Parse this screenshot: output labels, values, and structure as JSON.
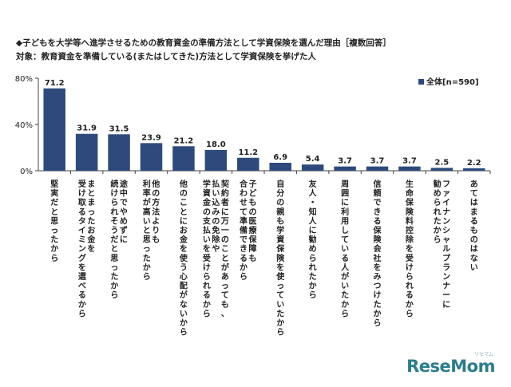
{
  "title_line1": "◆子どもを大学等へ進学させるための教育資金の準備方法として学資保険を選んだ理由［複数回答］",
  "title_line2": "対象：教育資金を準備している(またはしてきた)方法として学資保険を挙げた人",
  "watermark": {
    "text": "ReseMom",
    "small": "リセマム"
  },
  "chart_data": {
    "type": "bar",
    "categories": [
      "堅実だと思ったから",
      "まとまったお金を受け取るタイミングを選べるから",
      "途中でやめずに続けられそうだと思ったから",
      "他の方法よりも利率が高いと思ったから",
      "他のことにお金を使う心配がないから",
      "契約者に万一のことがあっても、払い込みの免除や学資金の支払いを受けられるから",
      "子どもの医療保障も合わせて準備できるから",
      "自分の親も学資保険を使っていたから",
      "友人・知人に勧められたから",
      "周囲に利用している人がいたから",
      "信頼できる保険会社をみつけたから",
      "生命保険料控除を受けられるから",
      "ファイナンシャルプランナーに勧められたから",
      "あてはまるものはない"
    ],
    "label_lines": [
      [
        "堅実だと思ったから"
      ],
      [
        "まとまったお金を",
        "受け取るタイミングを選べるから"
      ],
      [
        "途中でやめずに",
        "続けられそうだと思ったから"
      ],
      [
        "他の方法よりも",
        "利率が高いと思ったから"
      ],
      [
        "他のことにお金を使う心配がないから"
      ],
      [
        "契約者に万一のことがあっても、",
        "払い込みの免除や",
        "学資金の支払いを受けられるから"
      ],
      [
        "子どもの医療保障も",
        "合わせて準備できるから"
      ],
      [
        "自分の親も学資保険を使っていたから"
      ],
      [
        "友人・知人に勧められたから"
      ],
      [
        "周囲に利用している人がいたから"
      ],
      [
        "信頼できる保険会社をみつけたから"
      ],
      [
        "生命保険料控除を受けられるから"
      ],
      [
        "ファイナンシャルプランナーに",
        "勧められたから"
      ],
      [
        "あてはまるものはない"
      ]
    ],
    "series": [
      {
        "name": "全体[n=590]",
        "values": [
          71.2,
          31.9,
          31.5,
          23.9,
          21.2,
          18.0,
          11.2,
          6.9,
          5.4,
          3.7,
          3.7,
          3.7,
          2.5,
          2.2
        ]
      }
    ],
    "value_labels": [
      "71.2",
      "31.9",
      "31.5",
      "23.9",
      "21.2",
      "18.0",
      "11.2",
      "6.9",
      "5.4",
      "3.7",
      "3.7",
      "3.7",
      "2.5",
      "2.2"
    ],
    "yticks": [
      "0%",
      "40%",
      "80%"
    ],
    "ytick_values": [
      0,
      40,
      80
    ],
    "ylim": [
      0,
      80
    ],
    "legend_position": "top-right",
    "bar_color": "#2e4a7d",
    "grid": false
  }
}
